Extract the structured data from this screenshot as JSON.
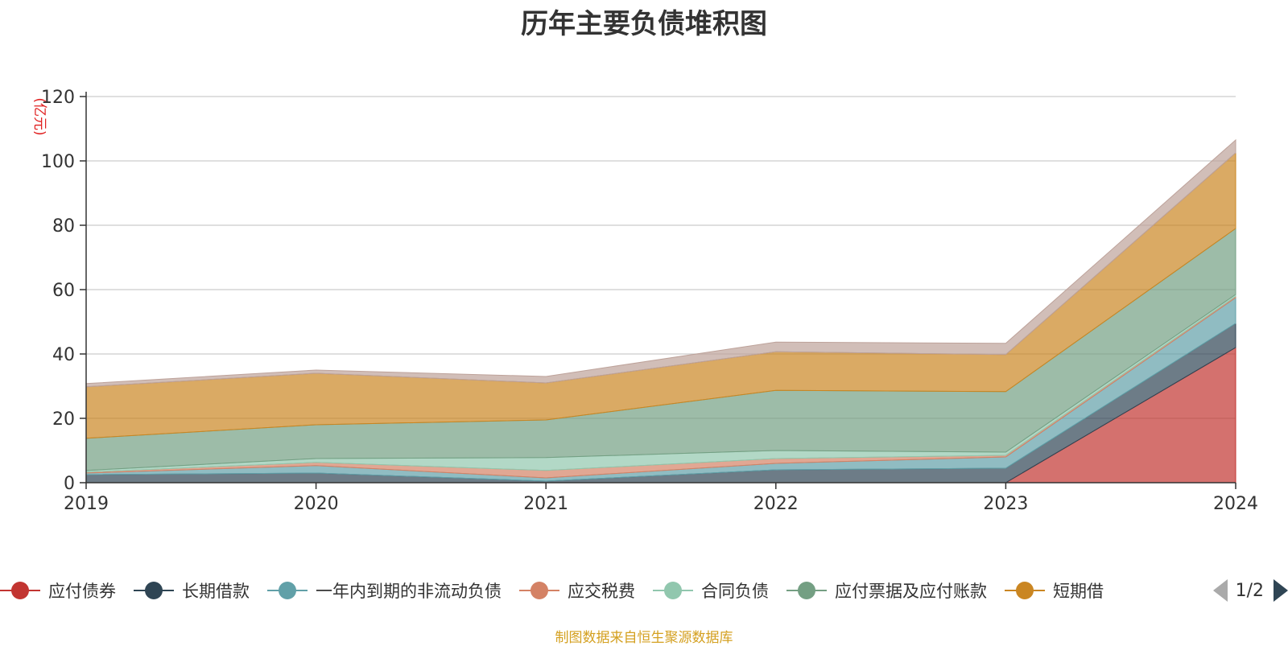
{
  "chart_data": {
    "type": "area",
    "stacked": true,
    "title": "历年主要负债堆积图",
    "ylabel": "(亿元)",
    "x": [
      "2019",
      "2020",
      "2021",
      "2022",
      "2023",
      "2024"
    ],
    "ylim": [
      0,
      120
    ],
    "yticks": [
      0,
      20,
      40,
      60,
      80,
      100,
      120
    ],
    "grid": true,
    "legend_position": "bottom",
    "series": [
      {
        "name": "应付债券",
        "color": "#c23531",
        "values": [
          0,
          0,
          0,
          0,
          0,
          42
        ]
      },
      {
        "name": "长期借款",
        "color": "#2f4554",
        "values": [
          2.5,
          3,
          0.5,
          4,
          4.5,
          7.5
        ]
      },
      {
        "name": "一年内到期的非流动负债",
        "color": "#61a0a8",
        "values": [
          0.5,
          2.3,
          1,
          2,
          3.5,
          8
        ]
      },
      {
        "name": "应交税费",
        "color": "#d48265",
        "values": [
          0.3,
          1,
          2.3,
          1.5,
          0.5,
          0.4
        ]
      },
      {
        "name": "合同负债",
        "color": "#91c7ae",
        "values": [
          0.5,
          1.2,
          4,
          2.5,
          1,
          0.6
        ]
      },
      {
        "name": "应付票据及应付账款",
        "color": "#749f83",
        "values": [
          10,
          10.5,
          11.7,
          18.7,
          18.8,
          20.5
        ]
      },
      {
        "name": "短期借",
        "color": "#ca8622",
        "values": [
          16,
          16,
          11.5,
          12,
          11.5,
          23.5
        ]
      },
      {
        "name": "",
        "color": "#bda29a",
        "values": [
          1,
          1,
          2,
          3,
          3.5,
          4
        ]
      }
    ]
  },
  "legend": {
    "items": [
      {
        "label": "应付债券",
        "color": "#c23531"
      },
      {
        "label": "长期借款",
        "color": "#2f4554"
      },
      {
        "label": "一年内到期的非流动负债",
        "color": "#61a0a8"
      },
      {
        "label": "应交税费",
        "color": "#d48265"
      },
      {
        "label": "合同负债",
        "color": "#91c7ae"
      },
      {
        "label": "应付票据及应付账款",
        "color": "#749f83"
      },
      {
        "label": "短期借",
        "color": "#ca8622"
      }
    ],
    "page_text": "1/2"
  },
  "footer": "制图数据来自恒生聚源数据库"
}
